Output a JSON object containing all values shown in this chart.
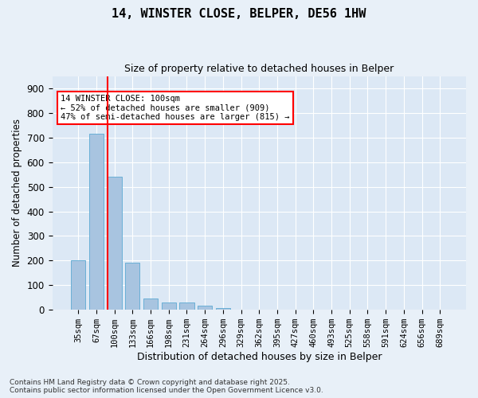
{
  "title_line1": "14, WINSTER CLOSE, BELPER, DE56 1HW",
  "title_line2": "Size of property relative to detached houses in Belper",
  "xlabel": "Distribution of detached houses by size in Belper",
  "ylabel": "Number of detached properties",
  "categories": [
    "35sqm",
    "67sqm",
    "100sqm",
    "133sqm",
    "166sqm",
    "198sqm",
    "231sqm",
    "264sqm",
    "296sqm",
    "329sqm",
    "362sqm",
    "395sqm",
    "427sqm",
    "460sqm",
    "493sqm",
    "525sqm",
    "558sqm",
    "591sqm",
    "624sqm",
    "656sqm",
    "689sqm"
  ],
  "values": [
    200,
    715,
    540,
    193,
    46,
    30,
    30,
    18,
    8,
    0,
    0,
    0,
    0,
    0,
    0,
    0,
    0,
    0,
    0,
    0,
    0
  ],
  "bar_color": "#a8c4e0",
  "bar_edge_color": "#6aafd6",
  "red_line_bar_index": 2,
  "annotation_box_text": "14 WINSTER CLOSE: 100sqm\n← 52% of detached houses are smaller (909)\n47% of semi-detached houses are larger (815) →",
  "ylim": [
    0,
    950
  ],
  "yticks": [
    0,
    100,
    200,
    300,
    400,
    500,
    600,
    700,
    800,
    900
  ],
  "background_color": "#e8f0f8",
  "plot_bg_color": "#dce8f5",
  "grid_color": "#ffffff",
  "footer_line1": "Contains HM Land Registry data © Crown copyright and database right 2025.",
  "footer_line2": "Contains public sector information licensed under the Open Government Licence v3.0.",
  "bar_width": 0.8
}
